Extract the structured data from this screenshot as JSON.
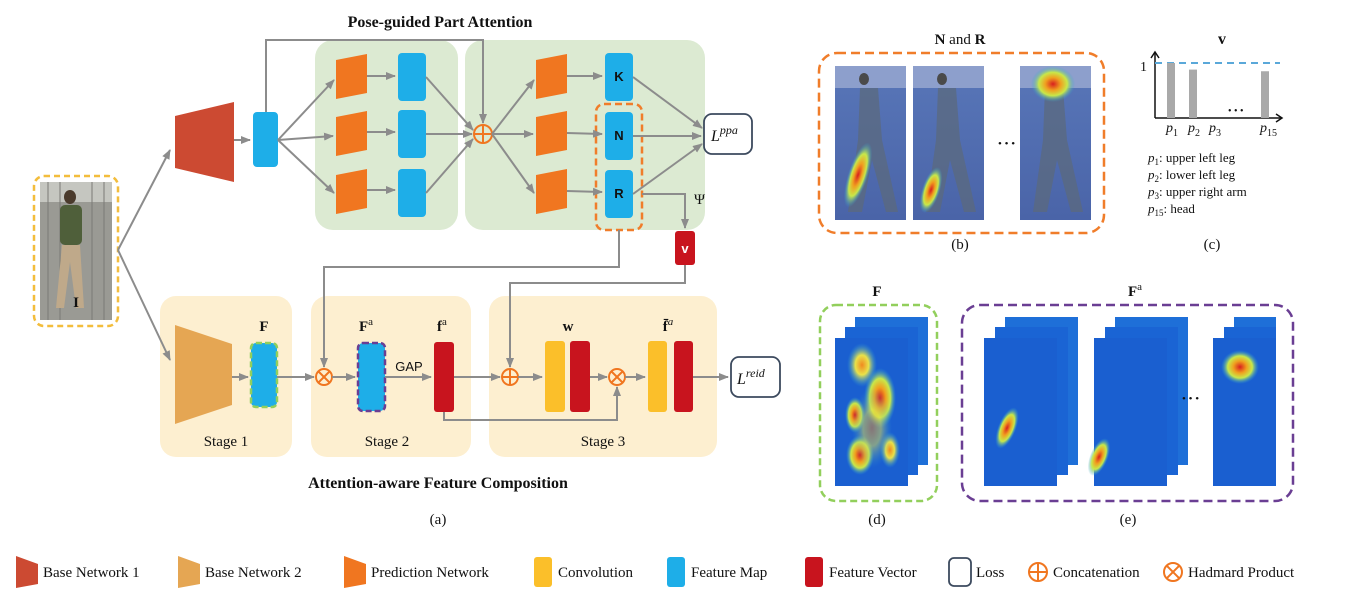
{
  "figure": {
    "top_section_title": "Pose-guided Part Attention",
    "bottom_section_title": "Attention-aware Feature Composition",
    "input_label": "I",
    "loss_ppa": "ppa",
    "loss_ppa_base": "L",
    "loss_reid": "reid",
    "loss_reid_base": "L",
    "psi_label": "Ψ",
    "v_box_label": "v",
    "map_labels": {
      "K": "K",
      "N": "N",
      "R": "R"
    },
    "stages": {
      "stage1": "Stage 1",
      "stage2": "Stage 2",
      "stage3": "Stage 3"
    },
    "feature_labels": {
      "F": "F",
      "Fa_base": "F",
      "Fa_sup": "a",
      "fa_base": "f",
      "fa_sup": "a",
      "w": "w",
      "fbar_base": "f̄",
      "fbar_sup": "a"
    },
    "gap_label": "GAP",
    "caption_a": "(a)"
  },
  "panel_b": {
    "title_n": "N",
    "title_and": " and ",
    "title_r": "R",
    "ellipsis": "• • •",
    "caption": "(b)"
  },
  "panel_c": {
    "title": "v",
    "y_tick": "1",
    "x_labels": [
      {
        "base": "p",
        "sub": "1"
      },
      {
        "base": "p",
        "sub": "2"
      },
      {
        "base": "p",
        "sub": "3"
      },
      {
        "base": "p",
        "sub": "15"
      }
    ],
    "ellipsis": "• • •",
    "legend": [
      {
        "base": "p",
        "sub": "1",
        "text": ": upper left leg"
      },
      {
        "base": "p",
        "sub": "2",
        "text": ": lower left leg"
      },
      {
        "base": "p",
        "sub": "3",
        "text": ": upper right arm"
      },
      {
        "base": "p",
        "sub": "15",
        "text": ": head"
      }
    ],
    "bars": [
      {
        "part": "p1",
        "value": 1.0
      },
      {
        "part": "p2",
        "value": 0.88
      },
      {
        "part": "p3",
        "value": 0.0
      },
      {
        "part": "p15",
        "value": 0.85
      }
    ],
    "ylim": [
      0,
      1.2
    ],
    "caption": "(c)"
  },
  "panel_d": {
    "title": "F",
    "caption": "(d)"
  },
  "panel_e": {
    "title_base": "F",
    "title_sup": "a",
    "ellipsis": "• • •",
    "caption": "(e)"
  },
  "legend": [
    {
      "name": "base-network-1",
      "label": "Base Network 1",
      "color": "#cc4a32"
    },
    {
      "name": "base-network-2",
      "label": "Base Network 2",
      "color": "#e5a653"
    },
    {
      "name": "prediction-network",
      "label": "Prediction Network",
      "color": "#f07620"
    },
    {
      "name": "convolution",
      "label": "Convolution",
      "color": "#fbbf2a"
    },
    {
      "name": "feature-map",
      "label": "Feature Map",
      "color": "#1eaee8"
    },
    {
      "name": "feature-vector",
      "label": "Feature Vector",
      "color": "#c8141e"
    },
    {
      "name": "loss",
      "label": "Loss",
      "color": "#ffffff"
    },
    {
      "name": "concatenation",
      "label": "Concatenation",
      "color": "#f07620"
    },
    {
      "name": "hadamard-product",
      "label": "Hadmard Product",
      "color": "#f07620"
    }
  ],
  "colors": {
    "green_panel": "#dcead2",
    "yellow_panel": "#fdefd0",
    "orange_dash": "#f07d2a",
    "yellow_dash": "#f3bd3c",
    "green_dash": "#92cf5c",
    "purple_dash": "#6a3e93",
    "arrow": "#8c8c8c",
    "loss_border": "#3c4a5e",
    "threshold_dash": "#5aa8d9"
  }
}
